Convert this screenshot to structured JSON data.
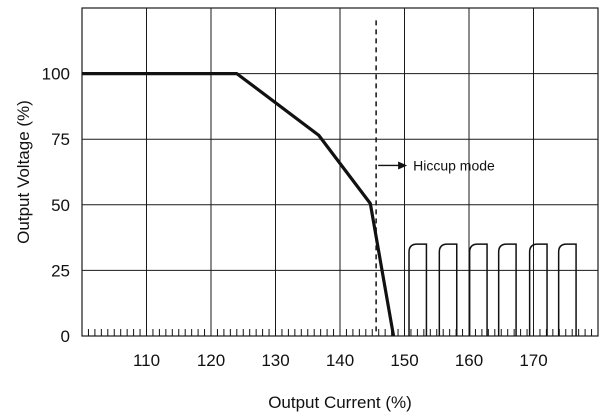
{
  "chart_data": {
    "type": "line",
    "title": "",
    "xlabel": "Output Current (%)",
    "ylabel": "Output Voltage (%)",
    "xlim": [
      100,
      180
    ],
    "ylim": [
      0,
      125
    ],
    "x_ticks": [
      110,
      120,
      130,
      140,
      150,
      160,
      170
    ],
    "y_ticks": [
      0,
      25,
      50,
      75,
      100
    ],
    "grid": true,
    "series": [
      {
        "name": "",
        "x": [
          100,
          124,
          136.7,
          144.7,
          148.3
        ],
        "y": [
          100,
          100,
          76.5,
          50.5,
          0
        ]
      }
    ],
    "annotations": [
      {
        "type": "vline",
        "x": 145.6,
        "text": "Hiccup mode",
        "y": 65
      }
    ],
    "hiccup_pulses": {
      "x_starts": [
        150.7,
        155.4,
        160.1,
        164.6,
        169.4,
        173.9
      ],
      "width": 2.7,
      "peak": 35
    }
  }
}
